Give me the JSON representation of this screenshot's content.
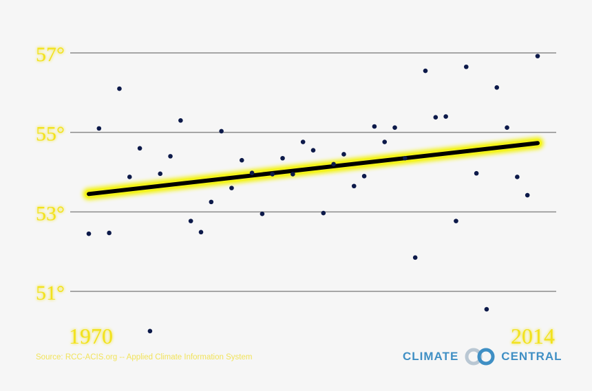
{
  "chart_data": {
    "type": "scatter",
    "title": "",
    "xlabel": "",
    "ylabel": "",
    "x_tick_labels": [
      "1970",
      "2014"
    ],
    "y_ticks": [
      {
        "value": 51,
        "label": "51°"
      },
      {
        "value": 53,
        "label": "53°"
      },
      {
        "value": 55,
        "label": "55°"
      },
      {
        "value": 57,
        "label": "57°"
      }
    ],
    "xlim": [
      1970,
      2014
    ],
    "ylim": [
      50,
      57.4
    ],
    "grid": true,
    "colors": {
      "points": "#0d1a4a",
      "trend": "#000000",
      "trend_glow": "#f3f31c",
      "labels": "#f2e21f",
      "grid": "#8a8a8a"
    },
    "points": [
      {
        "x": 1970,
        "y": 52.45
      },
      {
        "x": 1971,
        "y": 55.1
      },
      {
        "x": 1972,
        "y": 52.47
      },
      {
        "x": 1973,
        "y": 56.1
      },
      {
        "x": 1974,
        "y": 53.88
      },
      {
        "x": 1975,
        "y": 54.6
      },
      {
        "x": 1976,
        "y": 50.0
      },
      {
        "x": 1977,
        "y": 53.96
      },
      {
        "x": 1978,
        "y": 54.4
      },
      {
        "x": 1979,
        "y": 55.3
      },
      {
        "x": 1980,
        "y": 52.77
      },
      {
        "x": 1981,
        "y": 52.49
      },
      {
        "x": 1982,
        "y": 53.25
      },
      {
        "x": 1983,
        "y": 55.03
      },
      {
        "x": 1984,
        "y": 53.6
      },
      {
        "x": 1985,
        "y": 54.3
      },
      {
        "x": 1986,
        "y": 53.98
      },
      {
        "x": 1987,
        "y": 52.95
      },
      {
        "x": 1988,
        "y": 53.95
      },
      {
        "x": 1989,
        "y": 54.35
      },
      {
        "x": 1990,
        "y": 53.95
      },
      {
        "x": 1991,
        "y": 54.76
      },
      {
        "x": 1992,
        "y": 54.55
      },
      {
        "x": 1993,
        "y": 52.97
      },
      {
        "x": 1994,
        "y": 54.2
      },
      {
        "x": 1995,
        "y": 54.45
      },
      {
        "x": 1996,
        "y": 53.65
      },
      {
        "x": 1997,
        "y": 53.9
      },
      {
        "x": 1998,
        "y": 55.15
      },
      {
        "x": 1999,
        "y": 54.76
      },
      {
        "x": 2000,
        "y": 55.12
      },
      {
        "x": 2001,
        "y": 54.35
      },
      {
        "x": 2002,
        "y": 51.85
      },
      {
        "x": 2003,
        "y": 56.55
      },
      {
        "x": 2004,
        "y": 55.38
      },
      {
        "x": 2005,
        "y": 55.4
      },
      {
        "x": 2006,
        "y": 52.77
      },
      {
        "x": 2007,
        "y": 56.65
      },
      {
        "x": 2008,
        "y": 53.97
      },
      {
        "x": 2009,
        "y": 50.55
      },
      {
        "x": 2010,
        "y": 56.13
      },
      {
        "x": 2011,
        "y": 55.12
      },
      {
        "x": 2012,
        "y": 53.88
      },
      {
        "x": 2013,
        "y": 53.42
      },
      {
        "x": 2014,
        "y": 56.92
      }
    ],
    "trend": {
      "x": [
        1970,
        2014
      ],
      "y": [
        53.45,
        54.73
      ]
    }
  },
  "source": "Source: RCC-ACIS.org -- Applied Climate Information System",
  "logo": {
    "left": "CLIMATE",
    "right": "CENTRAL",
    "color": "#3f8fc4"
  }
}
